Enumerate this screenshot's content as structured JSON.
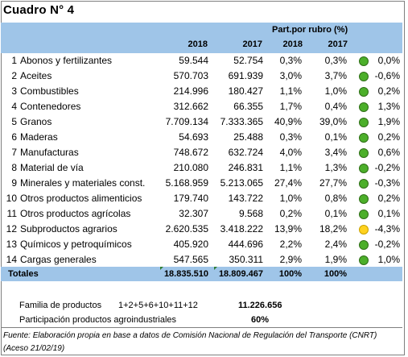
{
  "title": "Cuadro N° 4",
  "header": {
    "part_label": "Part.por rubro (%)",
    "year_2018": "2018",
    "year_2017": "2017",
    "pct_2018": "2018",
    "pct_2017": "2017"
  },
  "rows": [
    {
      "n": "1",
      "name": "Abonos y fertilizantes",
      "v2018": "59.544",
      "v2017": "52.754",
      "p2018": "0,3%",
      "p2017": "0,3%",
      "light": "green",
      "var": "0,0%"
    },
    {
      "n": "2",
      "name": "Aceites",
      "v2018": "570.703",
      "v2017": "691.939",
      "p2018": "3,0%",
      "p2017": "3,7%",
      "light": "green",
      "var": "-0,6%"
    },
    {
      "n": "3",
      "name": "Combustibles",
      "v2018": "214.996",
      "v2017": "180.427",
      "p2018": "1,1%",
      "p2017": "1,0%",
      "light": "green",
      "var": "0,2%"
    },
    {
      "n": "4",
      "name": "Contenedores",
      "v2018": "312.662",
      "v2017": "66.355",
      "p2018": "1,7%",
      "p2017": "0,4%",
      "light": "green",
      "var": "1,3%"
    },
    {
      "n": "5",
      "name": "Granos",
      "v2018": "7.709.134",
      "v2017": "7.333.365",
      "p2018": "40,9%",
      "p2017": "39,0%",
      "light": "green",
      "var": "1,9%"
    },
    {
      "n": "6",
      "name": "Maderas",
      "v2018": "54.693",
      "v2017": "25.488",
      "p2018": "0,3%",
      "p2017": "0,1%",
      "light": "green",
      "var": "0,2%"
    },
    {
      "n": "7",
      "name": "Manufacturas",
      "v2018": "748.672",
      "v2017": "632.724",
      "p2018": "4,0%",
      "p2017": "3,4%",
      "light": "green",
      "var": "0,6%"
    },
    {
      "n": "8",
      "name": "Material de vía",
      "v2018": "210.080",
      "v2017": "246.831",
      "p2018": "1,1%",
      "p2017": "1,3%",
      "light": "green",
      "var": "-0,2%"
    },
    {
      "n": "9",
      "name": "Minerales y materiales const.",
      "v2018": "5.168.959",
      "v2017": "5.213.065",
      "p2018": "27,4%",
      "p2017": "27,7%",
      "light": "green",
      "var": "-0,3%"
    },
    {
      "n": "10",
      "name": "Otros productos alimenticios",
      "v2018": "179.740",
      "v2017": "143.722",
      "p2018": "1,0%",
      "p2017": "0,8%",
      "light": "green",
      "var": "0,2%"
    },
    {
      "n": "11",
      "name": "Otros productos agrícolas",
      "v2018": "32.307",
      "v2017": "9.568",
      "p2018": "0,2%",
      "p2017": "0,1%",
      "light": "green",
      "var": "0,1%"
    },
    {
      "n": "12",
      "name": "Subproductos agrarios",
      "v2018": "2.620.535",
      "v2017": "3.418.222",
      "p2018": "13,9%",
      "p2017": "18,2%",
      "light": "yellow",
      "var": "-4,3%"
    },
    {
      "n": "13",
      "name": "Químicos y petroquímicos",
      "v2018": "405.920",
      "v2017": "444.696",
      "p2018": "2,2%",
      "p2017": "2,4%",
      "light": "green",
      "var": "-0,2%"
    },
    {
      "n": "14",
      "name": "Cargas generales",
      "v2018": "547.565",
      "v2017": "350.311",
      "p2018": "2,9%",
      "p2017": "1,9%",
      "light": "green",
      "var": "1,0%"
    }
  ],
  "totals": {
    "label": "Totales",
    "v2018": "18.835.510",
    "v2017": "18.809.467",
    "p2018": "100%",
    "p2017": "100%"
  },
  "family": {
    "label": "Familia de productos",
    "codes": "1+2+5+6+10+11+12",
    "value": "11.226.656",
    "share_label": "Participación productos agroindustriales",
    "share_value": "60%"
  },
  "source": "Fuente: Elaboración propia en base a datos de Comisión Nacional de Regulación del Transporte (CNRT) (Aceso 21/02/19)",
  "colors": {
    "header_bg": "#9fc5e8",
    "green_light": "#4caf2a",
    "yellow_light": "#ffd21f"
  }
}
